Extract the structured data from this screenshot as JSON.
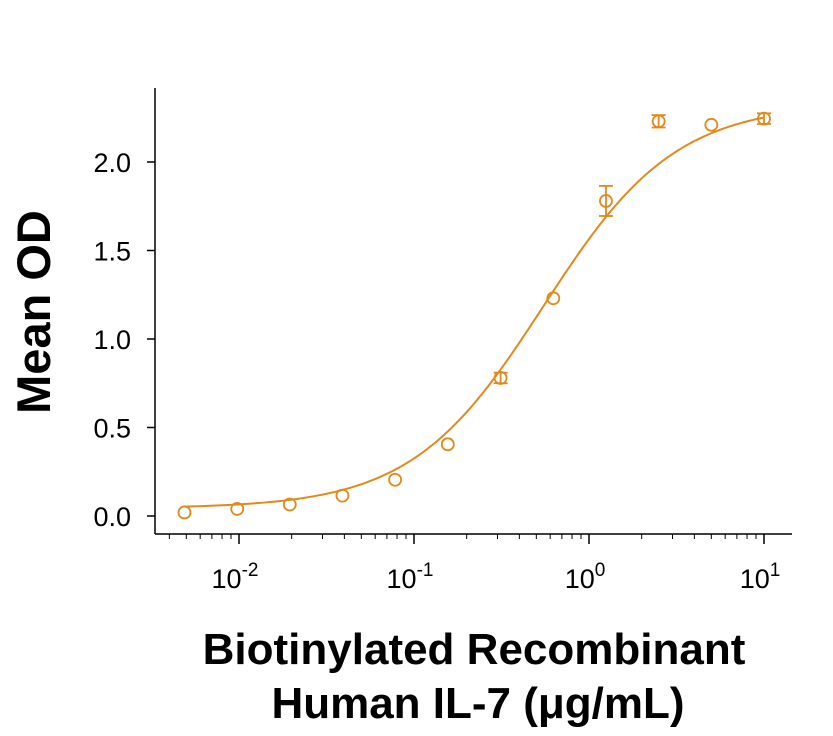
{
  "chart_data": {
    "type": "scatter",
    "title": "",
    "xlabel_line1": "Biotinylated Recombinant",
    "xlabel_line2": "Human IL-7 (μg/mL)",
    "ylabel": "Mean OD",
    "xscale": "log",
    "xlim": [
      0.004,
      13
    ],
    "ylim": [
      -0.1,
      2.4
    ],
    "grid": false,
    "legend": "none",
    "color": "#E08A1E",
    "yticks": [
      {
        "value": 0.0,
        "label": "0.0"
      },
      {
        "value": 0.5,
        "label": "0.5"
      },
      {
        "value": 1.0,
        "label": "1.0"
      },
      {
        "value": 1.5,
        "label": "1.5"
      },
      {
        "value": 2.0,
        "label": "2.0"
      }
    ],
    "xticks": [
      {
        "value": 0.01,
        "base": "10",
        "exp": "-2"
      },
      {
        "value": 0.1,
        "base": "10",
        "exp": "-1"
      },
      {
        "value": 1,
        "base": "10",
        "exp": "0"
      },
      {
        "value": 10,
        "base": "10",
        "exp": "1"
      }
    ],
    "series": [
      {
        "x": [
          0.00488,
          0.00977,
          0.0195,
          0.039,
          0.078,
          0.156,
          0.3125,
          0.625,
          1.25,
          2.5,
          5,
          10
        ],
        "y": [
          0.02,
          0.04,
          0.065,
          0.115,
          0.205,
          0.405,
          0.78,
          1.23,
          1.78,
          2.23,
          2.21,
          2.245
        ],
        "err": [
          0.005,
          0.005,
          0.008,
          0.01,
          0.015,
          0.025,
          0.03,
          0.01,
          0.085,
          0.035,
          0.02,
          0.03
        ]
      }
    ],
    "fit": {
      "model": "4PL",
      "bottom": 0.043,
      "top": 2.33,
      "ec50": 0.55,
      "hill": 1.15
    }
  }
}
